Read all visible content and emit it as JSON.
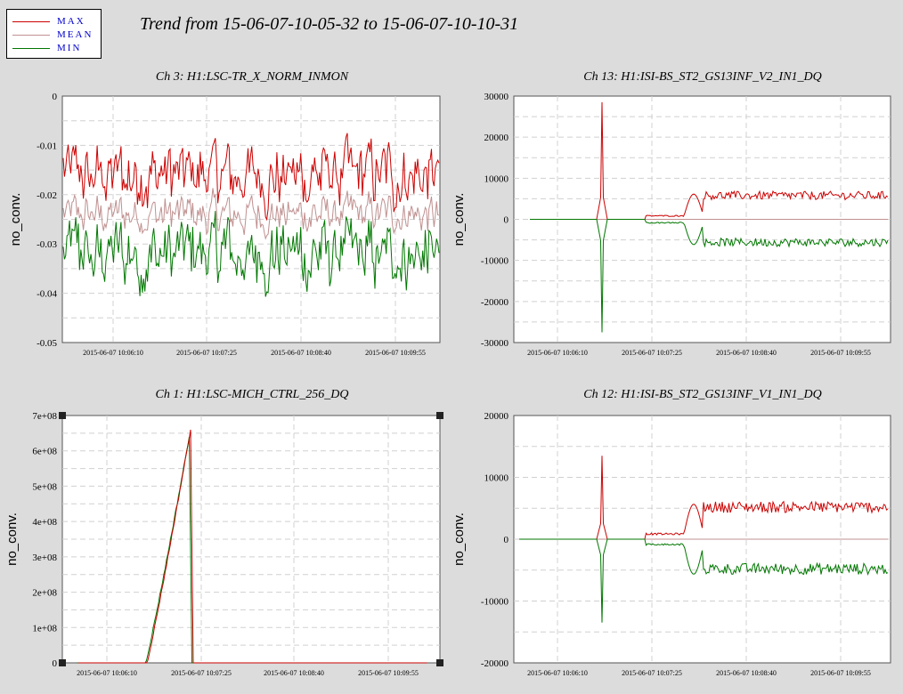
{
  "title": "Trend from 15-06-07-10-05-32 to 15-06-07-10-10-31",
  "legend": [
    {
      "label": "MAX",
      "color": "#cc0000"
    },
    {
      "label": "MEAN",
      "color": "#c09090"
    },
    {
      "label": "MIN",
      "color": "#007700"
    }
  ],
  "colors": {
    "max": "#cc0000",
    "mean": "#c09090",
    "min": "#007700"
  },
  "chart_data": [
    {
      "type": "line",
      "title": "Ch 3: H1:LSC-TR_X_NORM_INMON",
      "ylabel": "no_conv.",
      "xlabel": "",
      "ylim": [
        -0.05,
        0
      ],
      "yticks": [
        0,
        -0.01,
        -0.02,
        -0.03,
        -0.04,
        -0.05
      ],
      "ytick_labels": [
        "0",
        "-0.01",
        "-0.02",
        "-0.03",
        "-0.04",
        "-0.05"
      ],
      "x_tick_labels": [
        "2015-06-07 10:06:10",
        "2015-06-07 10:07:25",
        "2015-06-07 10:08:40",
        "2015-06-07 10:09:55"
      ],
      "grid": true,
      "series": [
        {
          "name": "MAX",
          "approx_level": -0.016
        },
        {
          "name": "MEAN",
          "approx_level": -0.024
        },
        {
          "name": "MIN",
          "approx_level": -0.032
        }
      ]
    },
    {
      "type": "line",
      "title": "Ch 13: H1:ISI-BS_ST2_GS13INF_V2_IN1_DQ",
      "ylabel": "no_conv.",
      "xlabel": "",
      "ylim": [
        -30000,
        30000
      ],
      "yticks": [
        30000,
        20000,
        10000,
        0,
        -10000,
        -20000,
        -30000
      ],
      "ytick_labels": [
        "30000",
        "20000",
        "10000",
        "0",
        "-10000",
        "-20000",
        "-30000"
      ],
      "x_tick_labels": [
        "2015-06-07 10:06:10",
        "2015-06-07 10:07:25",
        "2015-06-07 10:08:40",
        "2015-06-07 10:09:55"
      ],
      "grid": true,
      "spike_peak": 28500,
      "spike_trough": -27500,
      "steady_max": 5800,
      "steady_min": -5600
    },
    {
      "type": "line",
      "title": "Ch 1: H1:LSC-MICH_CTRL_256_DQ",
      "ylabel": "no_conv.",
      "xlabel": "",
      "ylim": [
        0,
        700000000
      ],
      "yticks": [
        0,
        100000000,
        200000000,
        300000000,
        400000000,
        500000000,
        600000000,
        700000000
      ],
      "ytick_labels": [
        "0",
        "1e+08",
        "2e+08",
        "3e+08",
        "4e+08",
        "5e+08",
        "6e+08",
        "7e+08"
      ],
      "x_tick_labels": [
        "2015-06-07 10:06:10",
        "2015-06-07 10:07:25",
        "2015-06-07 10:08:40",
        "2015-06-07 10:09:55"
      ],
      "grid": true,
      "ramp_peak": 660000000
    },
    {
      "type": "line",
      "title": "Ch 12: H1:ISI-BS_ST2_GS13INF_V1_IN1_DQ",
      "ylabel": "no_conv.",
      "xlabel": "",
      "ylim": [
        -20000,
        20000
      ],
      "yticks": [
        20000,
        10000,
        0,
        -10000,
        -20000
      ],
      "ytick_labels": [
        "20000",
        "10000",
        "0",
        "-10000",
        "-20000"
      ],
      "x_tick_labels": [
        "2015-06-07 10:06:10",
        "2015-06-07 10:07:25",
        "2015-06-07 10:08:40",
        "2015-06-07 10:09:55"
      ],
      "grid": true,
      "spike_peak": 13500,
      "spike_trough": -13500,
      "steady_max": 5200,
      "steady_min": -4800
    }
  ]
}
